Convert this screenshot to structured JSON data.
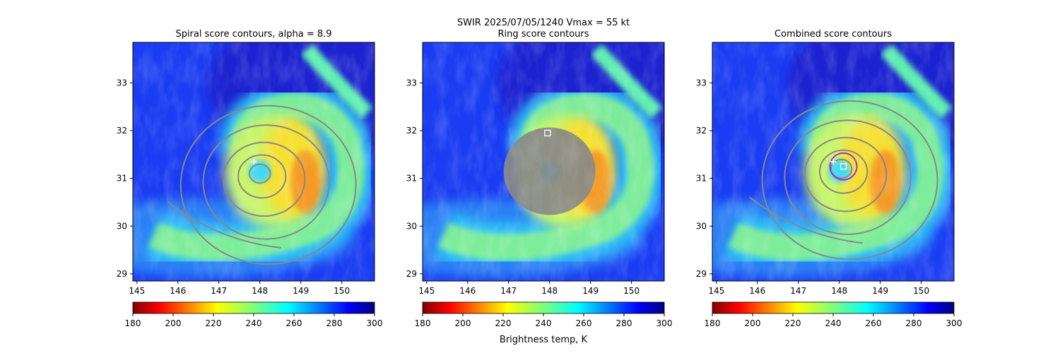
{
  "figure": {
    "suptitle_line1": "SWIR  2025/07/05/1240    Vmax = 55 kt",
    "colorbar_label": "Brightness temp, K"
  },
  "chart_data": [
    {
      "type": "heatmap",
      "title": "Spiral score contours, alpha =  8.9",
      "xlim": [
        144.9,
        150.8
      ],
      "ylim": [
        28.85,
        33.85
      ],
      "xticks": [
        "145",
        "146",
        "147",
        "148",
        "149",
        "150"
      ],
      "yticks": [
        "29",
        "30",
        "31",
        "32",
        "33"
      ],
      "colormap": "jet_r",
      "colorbar": {
        "range": [
          180,
          300
        ],
        "ticks": [
          "180",
          "200",
          "220",
          "240",
          "260",
          "280",
          "300"
        ]
      },
      "storm_center": [
        148.0,
        31.0
      ],
      "first_guess_marker": {
        "shape": "+",
        "color": "#ffffff",
        "lon": 147.85,
        "lat": 31.35
      },
      "contours": {
        "color": "#888888",
        "style": "spiral-rings",
        "center": [
          148.0,
          31.1
        ]
      }
    },
    {
      "type": "heatmap",
      "title": "Ring score contours",
      "xlim": [
        144.9,
        150.8
      ],
      "ylim": [
        28.85,
        33.85
      ],
      "xticks": [
        "145",
        "146",
        "147",
        "148",
        "149",
        "150"
      ],
      "yticks": [
        "29",
        "30",
        "31",
        "32",
        "33"
      ],
      "colormap": "jet_r",
      "colorbar": {
        "range": [
          180,
          300
        ],
        "ticks": [
          "180",
          "200",
          "220",
          "240",
          "260",
          "280",
          "300"
        ]
      },
      "storm_center": [
        148.0,
        31.0
      ],
      "best_marker": {
        "shape": "square",
        "color": "#ffffff",
        "lon": 147.95,
        "lat": 31.95
      },
      "contours": {
        "color": "#888888",
        "style": "dense-blob",
        "center": [
          148.0,
          31.15
        ]
      }
    },
    {
      "type": "heatmap",
      "title": "Combined score contours",
      "xlim": [
        144.9,
        150.8
      ],
      "ylim": [
        28.85,
        33.85
      ],
      "xticks": [
        "145",
        "146",
        "147",
        "148",
        "149",
        "150"
      ],
      "yticks": [
        "29",
        "30",
        "31",
        "32",
        "33"
      ],
      "colormap": "jet_r",
      "colorbar": {
        "range": [
          180,
          300
        ],
        "ticks": [
          "180",
          "200",
          "220",
          "240",
          "260",
          "280",
          "300"
        ]
      },
      "storm_center": [
        148.0,
        31.0
      ],
      "first_guess_marker": {
        "shape": "+",
        "color": "#ffffff",
        "lon": 147.85,
        "lat": 31.35
      },
      "best_marker": {
        "shape": "square",
        "color": "#ffffff",
        "lon": 148.1,
        "lat": 31.25
      },
      "eye_circle": {
        "color": "#9b30d9",
        "center": [
          148.1,
          31.25
        ]
      },
      "contours": {
        "color": "#888888",
        "style": "spiral-rings",
        "center": [
          148.05,
          31.2
        ]
      }
    }
  ]
}
